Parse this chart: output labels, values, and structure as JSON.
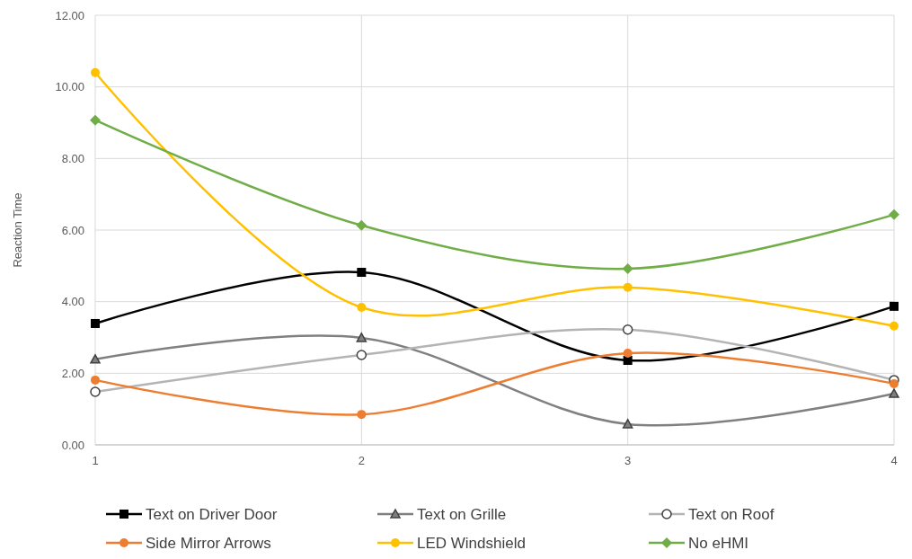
{
  "chart_data": {
    "type": "line",
    "ylabel": "Reaction Time",
    "x": [
      1,
      2,
      3,
      4
    ],
    "xlim": [
      1,
      4
    ],
    "xticks": [
      1,
      2,
      3,
      4
    ],
    "ylim": [
      0,
      12
    ],
    "yticks": [
      {
        "value": 0,
        "label": "0.00"
      },
      {
        "value": 2,
        "label": "2.00"
      },
      {
        "value": 4,
        "label": "4.00"
      },
      {
        "value": 6,
        "label": "6.00"
      },
      {
        "value": 8,
        "label": "8.00"
      },
      {
        "value": 10,
        "label": "10.00"
      },
      {
        "value": 12,
        "label": "12.00"
      }
    ],
    "grid": true,
    "legend": "bottom",
    "line_style": "solid",
    "series": [
      {
        "name": "Text on Driver Door",
        "color": "#000000",
        "marker": "square",
        "values": [
          3.39,
          4.82,
          2.36,
          3.87
        ]
      },
      {
        "name": "Text on Grille",
        "color": "#808080",
        "marker": "triangle",
        "values": [
          2.39,
          2.99,
          0.58,
          1.43
        ]
      },
      {
        "name": "Text on Roof",
        "color": "#b4b4b4",
        "marker": "circle",
        "values": [
          1.48,
          2.51,
          3.22,
          1.81
        ]
      },
      {
        "name": "Side Mirror Arrows",
        "color": "#ed7d31",
        "marker": "circle",
        "values": [
          1.81,
          0.85,
          2.56,
          1.71
        ]
      },
      {
        "name": "LED Windshield",
        "color": "#ffc000",
        "marker": "circle",
        "values": [
          10.4,
          3.84,
          4.4,
          3.32
        ]
      },
      {
        "name": "No eHMI",
        "color": "#70ad47",
        "marker": "diamond",
        "values": [
          9.07,
          6.13,
          4.92,
          6.43
        ]
      }
    ]
  }
}
